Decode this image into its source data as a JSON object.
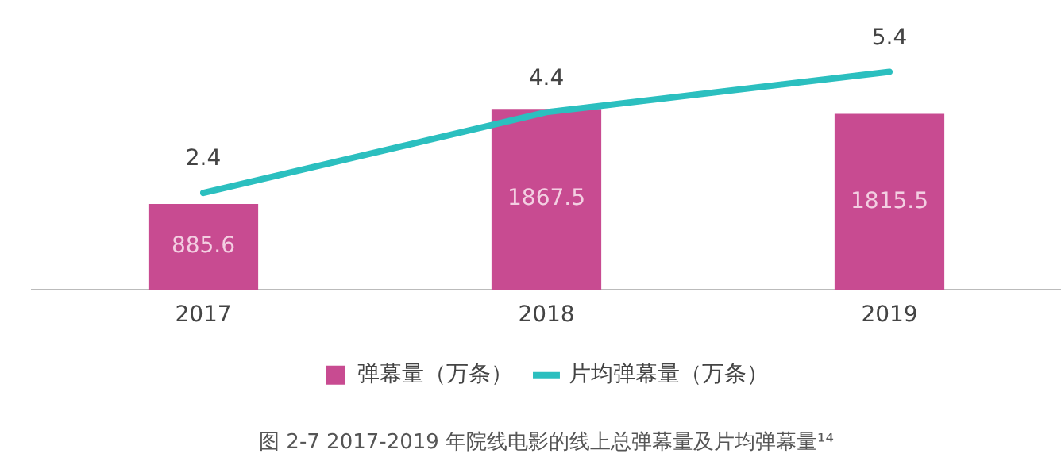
{
  "chart_data": {
    "type": "bar",
    "title": "图 2-7 2017-2019 年院线电影的线上总弹幕量及片均弹幕量¹⁴",
    "categories": [
      "2017",
      "2018",
      "2019"
    ],
    "series": [
      {
        "name": "弹幕量（万条）",
        "color": "#c84b91",
        "values": [
          885.6,
          1867.5,
          1815.5
        ]
      },
      {
        "name": "片均弹幕量（万条）",
        "type": "line",
        "axis": "y2",
        "color": "#2bbfbf",
        "values": [
          2.4,
          4.4,
          5.4
        ]
      }
    ],
    "tick_labels": "x",
    "grid": false,
    "legend": "bottom",
    "marker": "none",
    "line_style": "solid",
    "data_labels": true
  }
}
